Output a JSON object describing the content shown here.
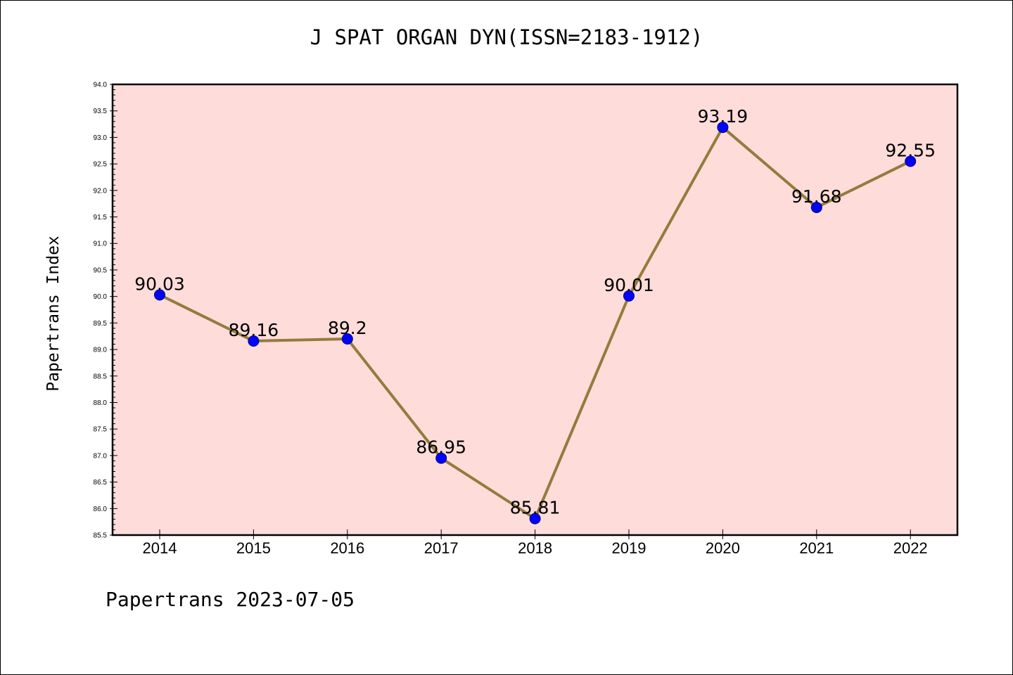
{
  "title": "J SPAT ORGAN DYN(ISSN=2183-1912)",
  "footer": "Papertrans 2023-07-05",
  "colors": {
    "plot_background": "#fddcda",
    "line": "#937c3c",
    "marker": "#0000ff"
  },
  "chart_data": {
    "type": "line",
    "title": "J SPAT ORGAN DYN(ISSN=2183-1912)",
    "xlabel": "",
    "ylabel": "Papertrans Index",
    "categories": [
      "2014",
      "2015",
      "2016",
      "2017",
      "2018",
      "2019",
      "2020",
      "2021",
      "2022"
    ],
    "series": [
      {
        "values": [
          90.03,
          89.16,
          89.2,
          86.95,
          85.81,
          90.01,
          93.19,
          91.68,
          92.55
        ],
        "labels": [
          "90.03",
          "89.16",
          "89.2",
          "86.95",
          "85.81",
          "90.01",
          "93.19",
          "91.68",
          "92.55"
        ]
      }
    ],
    "ylim": [
      85.5,
      94.0
    ],
    "yticks": [
      "85.5",
      "86.0",
      "86.5",
      "87.0",
      "87.5",
      "88.0",
      "88.5",
      "89.0",
      "89.5",
      "90.0",
      "90.5",
      "91.0",
      "91.5",
      "92.0",
      "92.5",
      "93.0",
      "93.5",
      "94.0"
    ],
    "grid": false,
    "legend": "none"
  }
}
